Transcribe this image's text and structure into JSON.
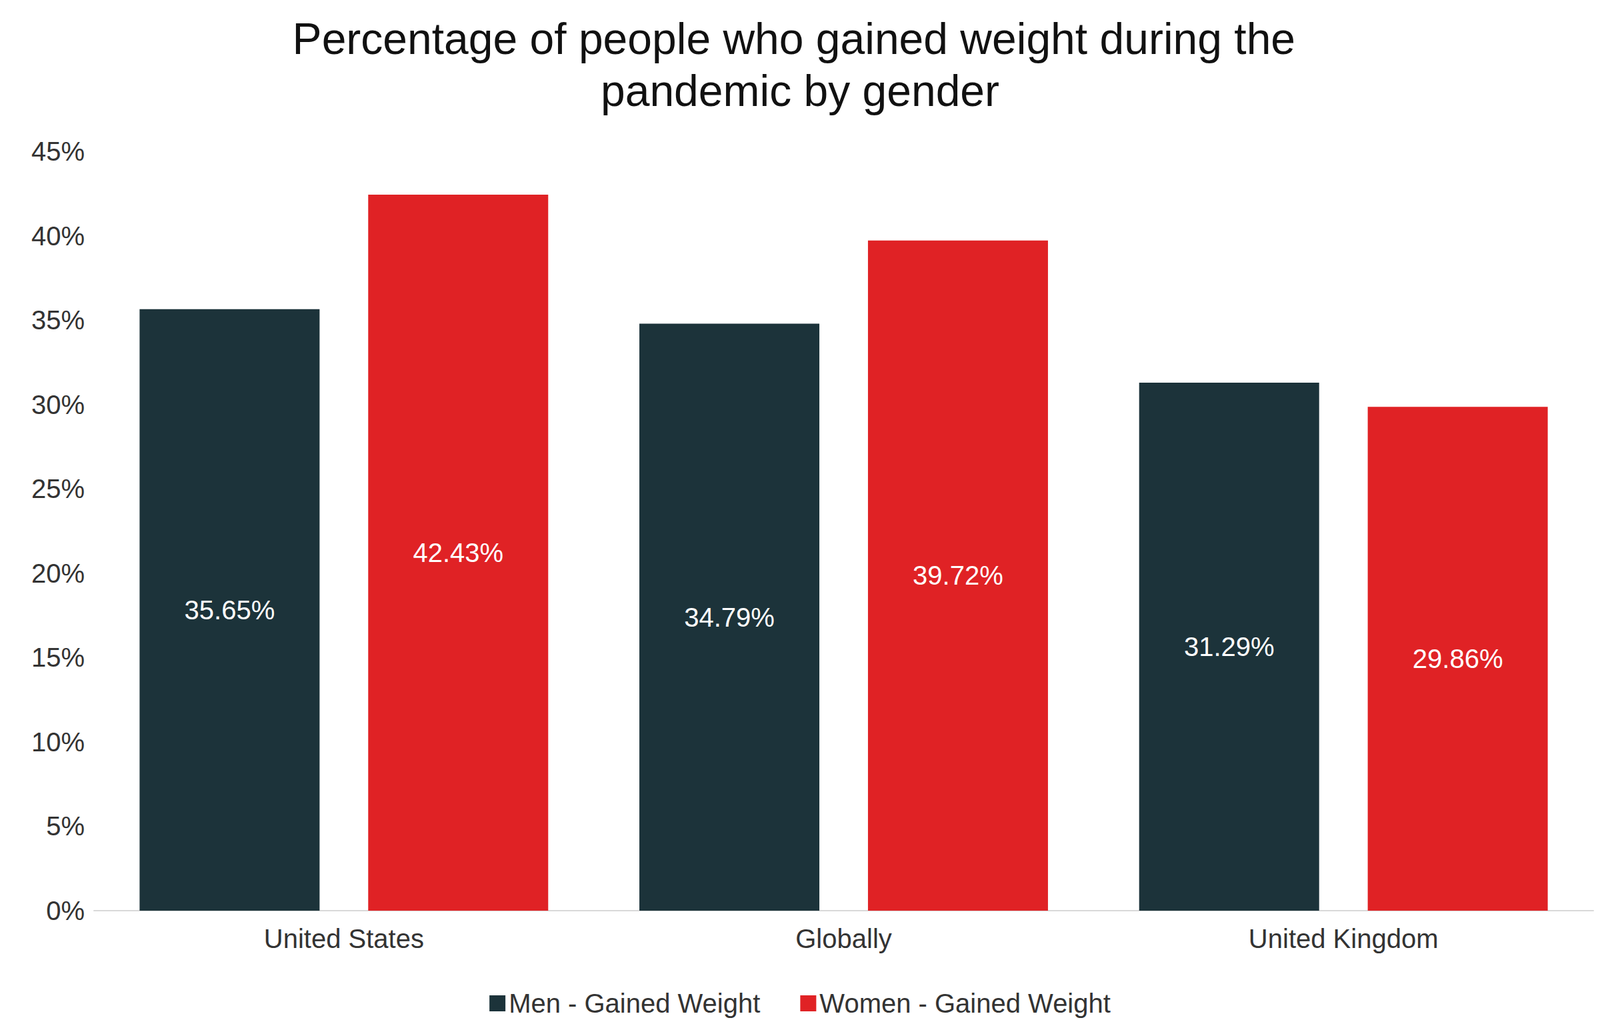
{
  "chart_data": {
    "type": "bar",
    "title": "Percentage of people who gained weight during the pandemic by gender",
    "categories": [
      "United States",
      "Globally",
      "United Kingdom"
    ],
    "series": [
      {
        "name": "Men - Gained Weight",
        "color": "#1c333a",
        "values": [
          35.65,
          34.79,
          31.29
        ],
        "value_labels": [
          "35.65%",
          "34.79%",
          "31.29%"
        ]
      },
      {
        "name": "Women - Gained Weight",
        "color": "#e02225",
        "values": [
          42.43,
          39.72,
          29.86
        ],
        "value_labels": [
          "42.43%",
          "39.72%",
          "29.86%"
        ]
      }
    ],
    "ylim": [
      0,
      45
    ],
    "yticks": [
      {
        "value": 0,
        "label": "0%"
      },
      {
        "value": 5,
        "label": "5%"
      },
      {
        "value": 10,
        "label": "10%"
      },
      {
        "value": 15,
        "label": "15%"
      },
      {
        "value": 20,
        "label": "20%"
      },
      {
        "value": 25,
        "label": "25%"
      },
      {
        "value": 30,
        "label": "30%"
      },
      {
        "value": 35,
        "label": "35%"
      },
      {
        "value": 40,
        "label": "40%"
      },
      {
        "value": 45,
        "label": "45%"
      }
    ],
    "grid": false,
    "legend": "bottom",
    "data_labels": true
  }
}
